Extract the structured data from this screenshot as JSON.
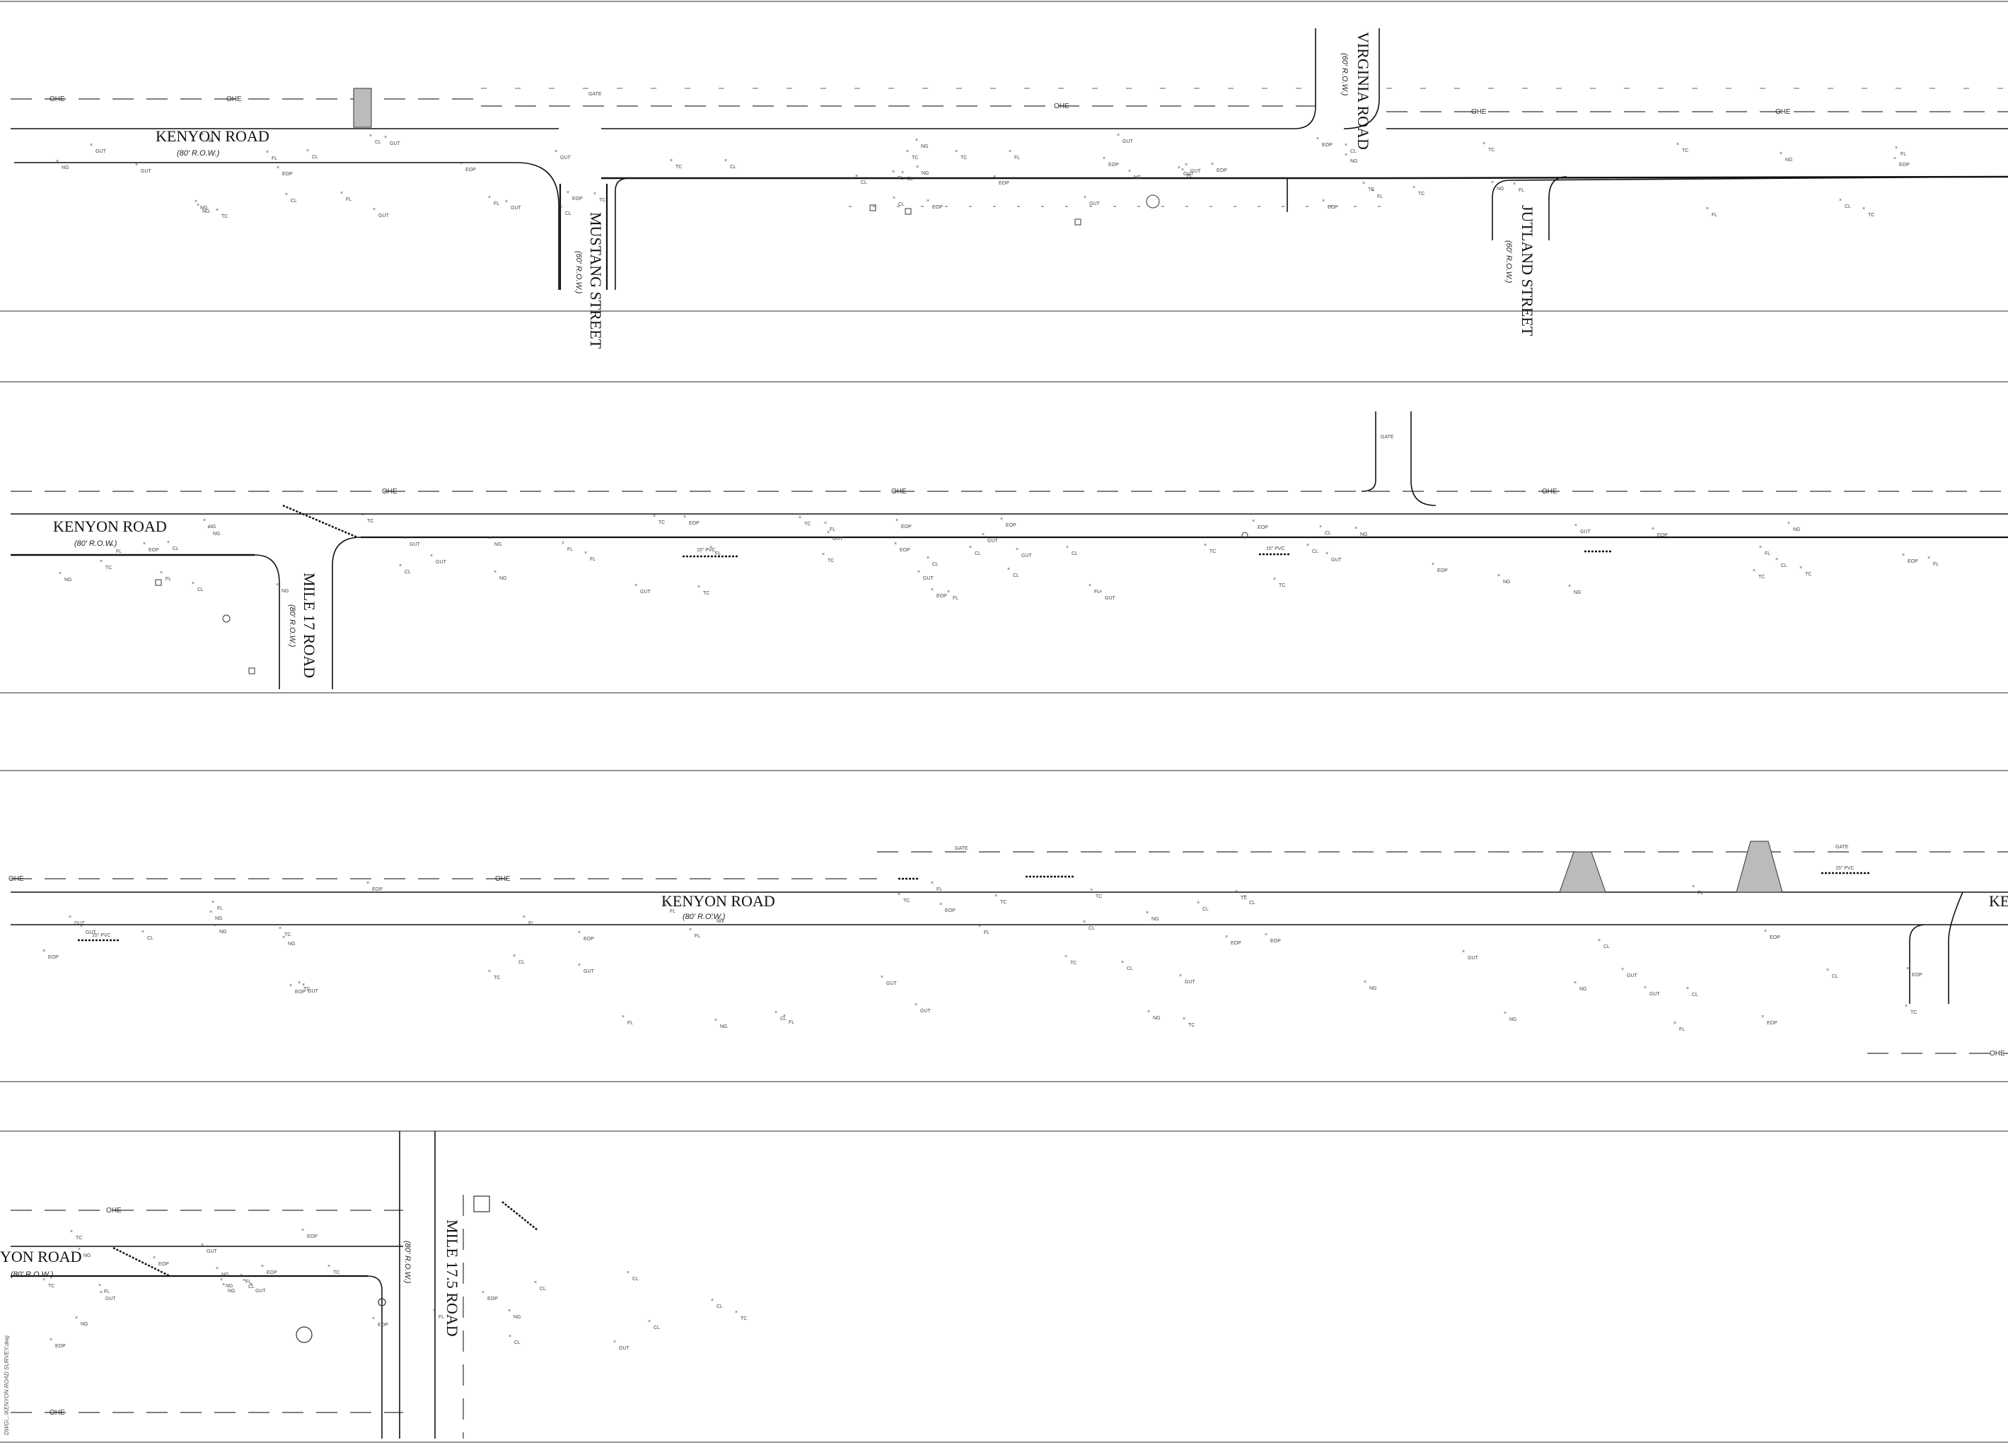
{
  "sheet": {
    "file_path": "DWG\\...\\KENYON ROAD SURVEY.dwg"
  },
  "panels": [
    {
      "id": "panel-1",
      "road_main": "KENYON ROAD",
      "road_main_row": "(80' R.O.W.)",
      "cross_streets": [
        {
          "name": "MUSTANG STREET",
          "row": "(60' R.O.W.)"
        },
        {
          "name": "VIRGINIA ROAD",
          "row": "(60' R.O.W.)"
        },
        {
          "name": "JUTLAND STREET",
          "row": "(60' R.O.W.)"
        }
      ],
      "labels": {
        "gate": "GATE",
        "ohe": "OHE"
      }
    },
    {
      "id": "panel-2",
      "road_main": "KENYON ROAD",
      "road_main_row": "(80' R.O.W.)",
      "cross_streets": [
        {
          "name": "MILE 17 ROAD",
          "row": "(80' R.O.W.)"
        }
      ],
      "labels": {
        "gate": "GATE",
        "pipe": "15\" PVC",
        "ohe": "OHE"
      }
    },
    {
      "id": "panel-3",
      "road_main": "KENYON ROAD",
      "road_main_row": "(80' R.O.W.)",
      "road_end_label": "KE",
      "labels": {
        "gate": "GATE",
        "pipe": "15\" PVC",
        "ohe": "OHE"
      }
    },
    {
      "id": "panel-4",
      "road_main": "YON ROAD",
      "road_main_row": "(80' R.O.W.)",
      "cross_streets": [
        {
          "name": "MILE 17.5 ROAD",
          "row": "(80' R.O.W.)"
        }
      ],
      "labels": {
        "ohe": "OHE"
      }
    }
  ],
  "spot_codes": [
    "EOP",
    "FL",
    "CL",
    "NG",
    "GUT",
    "TC"
  ],
  "colors": {
    "ink": "#111111",
    "light_ink": "#666666",
    "paper": "#ffffff"
  }
}
